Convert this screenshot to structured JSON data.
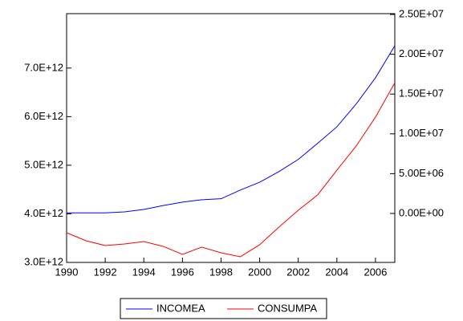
{
  "chart_data": {
    "type": "line",
    "x": [
      1990,
      1991,
      1992,
      1993,
      1994,
      1995,
      1996,
      1997,
      1998,
      1999,
      2000,
      2001,
      2002,
      2003,
      2004,
      2005,
      2006,
      2007
    ],
    "xlim": [
      1990,
      2007
    ],
    "xticks": [
      1990,
      1992,
      1994,
      1996,
      1998,
      2000,
      2002,
      2004,
      2006
    ],
    "ylim": [
      3000000000000.0,
      8120000000000.0
    ],
    "yticks": [
      {
        "value": 3000000000000.0,
        "label": "3.0E+12"
      },
      {
        "value": 4000000000000.0,
        "label": "4.0E+12"
      },
      {
        "value": 5000000000000.0,
        "label": "5.0E+12"
      },
      {
        "value": 6000000000000.0,
        "label": "6.0E+12"
      },
      {
        "value": 7000000000000.0,
        "label": "7.0E+12"
      }
    ],
    "y2lim": [
      -6150000,
      25100000
    ],
    "y2ticks": [
      {
        "value": 0,
        "label": "0.00E+00"
      },
      {
        "value": 5000000,
        "label": "5.00E+06"
      },
      {
        "value": 10000000,
        "label": "1.00E+07"
      },
      {
        "value": 15000000,
        "label": "1.50E+07"
      },
      {
        "value": 20000000,
        "label": "2.00E+07"
      },
      {
        "value": 25000000,
        "label": "2.50E+07"
      }
    ],
    "grid": false,
    "legend": "bottom",
    "series": [
      {
        "name": "INCOMEA",
        "color": "#0000ff",
        "values": [
          4020000000000.0,
          4020000000000.0,
          4020000000000.0,
          4040000000000.0,
          4090000000000.0,
          4170000000000.0,
          4240000000000.0,
          4290000000000.0,
          4310000000000.0,
          4490000000000.0,
          4650000000000.0,
          4870000000000.0,
          5120000000000.0,
          5450000000000.0,
          5790000000000.0,
          6260000000000.0,
          6800000000000.0,
          7460000000000.0
        ]
      },
      {
        "name": "CONSUMPA",
        "color": "#ff0000",
        "axis": "y2",
        "values": [
          -2420000,
          -3430000,
          -4030000,
          -3830000,
          -3530000,
          -4130000,
          -5140000,
          -4230000,
          -4940000,
          -5440000,
          -3930000,
          -1710000,
          400000,
          2320000,
          5440000,
          8470000,
          12100000,
          16400000
        ]
      }
    ]
  }
}
